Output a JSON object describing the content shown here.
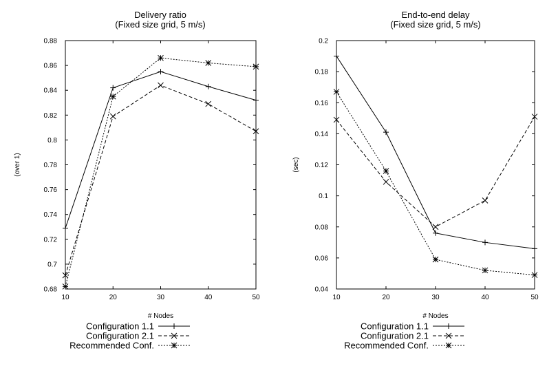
{
  "chart_data": [
    {
      "type": "line",
      "title": "Delivery ratio",
      "subtitle": "(Fixed size grid, 5 m/s)",
      "xlabel": "# Nodes",
      "ylabel": "(over 1)",
      "x": [
        10,
        20,
        30,
        40,
        50
      ],
      "xlim": [
        10,
        50
      ],
      "ylim": [
        0.68,
        0.88
      ],
      "yticks": [
        "0.68",
        "0.7",
        "0.72",
        "0.74",
        "0.76",
        "0.78",
        "0.8",
        "0.82",
        "0.84",
        "0.86",
        "0.88"
      ],
      "xticks": [
        "10",
        "20",
        "30",
        "40",
        "50"
      ],
      "grid": false,
      "legend_position": "bottom",
      "series": [
        {
          "name": "Configuration 1.1",
          "values": [
            0.729,
            0.842,
            0.855,
            0.843,
            0.832
          ],
          "dash": "solid",
          "marker": "plus"
        },
        {
          "name": "Configuration 2.1",
          "values": [
            0.691,
            0.819,
            0.844,
            0.829,
            0.807
          ],
          "dash": "dashed",
          "marker": "cross"
        },
        {
          "name": "Recommended Conf.",
          "values": [
            0.682,
            0.835,
            0.866,
            0.862,
            0.859
          ],
          "dash": "dotted",
          "marker": "star"
        }
      ]
    },
    {
      "type": "line",
      "title": "End-to-end delay",
      "subtitle": "(Fixed size grid, 5 m/s)",
      "xlabel": "# Nodes",
      "ylabel": "(sec)",
      "x": [
        10,
        20,
        30,
        40,
        50
      ],
      "xlim": [
        10,
        50
      ],
      "ylim": [
        0.04,
        0.2
      ],
      "yticks": [
        "0.04",
        "0.06",
        "0.08",
        "0.1",
        "0.12",
        "0.14",
        "0.16",
        "0.18",
        "0.2"
      ],
      "xticks": [
        "10",
        "20",
        "30",
        "40",
        "50"
      ],
      "grid": false,
      "legend_position": "bottom",
      "series": [
        {
          "name": "Configuration 1.1",
          "values": [
            0.19,
            0.141,
            0.076,
            0.07,
            0.066
          ],
          "dash": "solid",
          "marker": "plus"
        },
        {
          "name": "Configuration 2.1",
          "values": [
            0.149,
            0.109,
            0.08,
            0.097,
            0.151
          ],
          "dash": "dashed",
          "marker": "cross"
        },
        {
          "name": "Recommended Conf.",
          "values": [
            0.167,
            0.116,
            0.059,
            0.052,
            0.049
          ],
          "dash": "dotted",
          "marker": "star"
        }
      ]
    }
  ]
}
